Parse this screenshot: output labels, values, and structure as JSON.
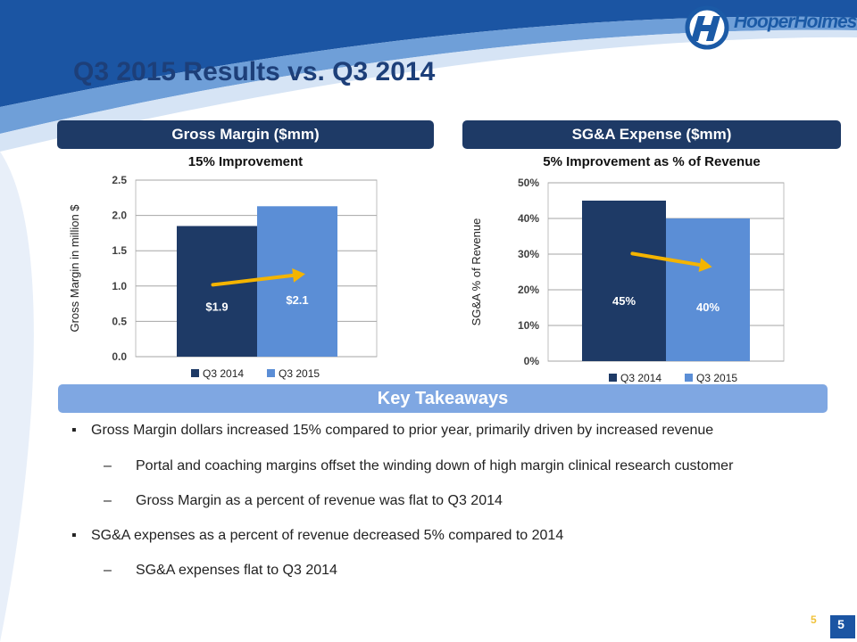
{
  "brand": {
    "logo_text": "HooperHolmes",
    "colors": {
      "navy": "#1e3a66",
      "blue": "#5b8ed6",
      "light_blue": "#7fa7e2",
      "arrow": "#f4b400"
    }
  },
  "slide": {
    "title": "Q3 2015 Results vs. Q3 2014",
    "page_number": "5"
  },
  "left_panel": {
    "header": "Gross Margin ($mm)",
    "subtitle": "15% Improvement"
  },
  "right_panel": {
    "header": "SG&A Expense ($mm)",
    "subtitle": "5% Improvement as % of Revenue"
  },
  "takeaways": {
    "header": "Key Takeaways",
    "items": [
      {
        "level": 1,
        "text": "Gross Margin dollars increased 15% compared to prior year, primarily driven by increased revenue"
      },
      {
        "level": 2,
        "text": "Portal and coaching margins offset the winding down of high margin clinical research customer"
      },
      {
        "level": 2,
        "text": "Gross Margin as a percent of revenue was flat to Q3 2014"
      },
      {
        "level": 1,
        "text": "SG&A expenses as a percent of revenue decreased 5% compared to 2014"
      },
      {
        "level": 2,
        "text": "SG&A expenses flat to Q3 2014"
      }
    ],
    "bullet_mark": "▪",
    "sub_mark": "–"
  },
  "chart_data": [
    {
      "type": "bar",
      "categories": [
        "Q3 2014",
        "Q3 2015"
      ],
      "values": [
        1.85,
        2.13
      ],
      "data_labels": [
        "$1.9",
        "$2.1"
      ],
      "ylabel": "Gross Margin in million $",
      "ylim": [
        0,
        2.5
      ],
      "yticks": [
        "0.0",
        "0.5",
        "1.0",
        "1.5",
        "2.0",
        "2.5"
      ],
      "ytick_values": [
        0,
        0.5,
        1.0,
        1.5,
        2.0,
        2.5
      ],
      "legend": [
        "Q3 2014",
        "Q3 2015"
      ],
      "legend_position": "bottom",
      "grid": true,
      "colors": [
        "#1e3a66",
        "#5b8ed6"
      ],
      "trend_arrow": "up"
    },
    {
      "type": "bar",
      "categories": [
        "Q3 2014",
        "Q3 2015"
      ],
      "values": [
        45,
        40
      ],
      "data_labels": [
        "45%",
        "40%"
      ],
      "ylabel": "SG&A % of Revenue",
      "ylim": [
        0,
        50
      ],
      "yticks": [
        "0%",
        "10%",
        "20%",
        "30%",
        "40%",
        "50%"
      ],
      "ytick_values": [
        0,
        10,
        20,
        30,
        40,
        50
      ],
      "legend": [
        "Q3 2014",
        "Q3 2015"
      ],
      "legend_position": "bottom",
      "grid": true,
      "colors": [
        "#1e3a66",
        "#5b8ed6"
      ],
      "trend_arrow": "down"
    }
  ]
}
